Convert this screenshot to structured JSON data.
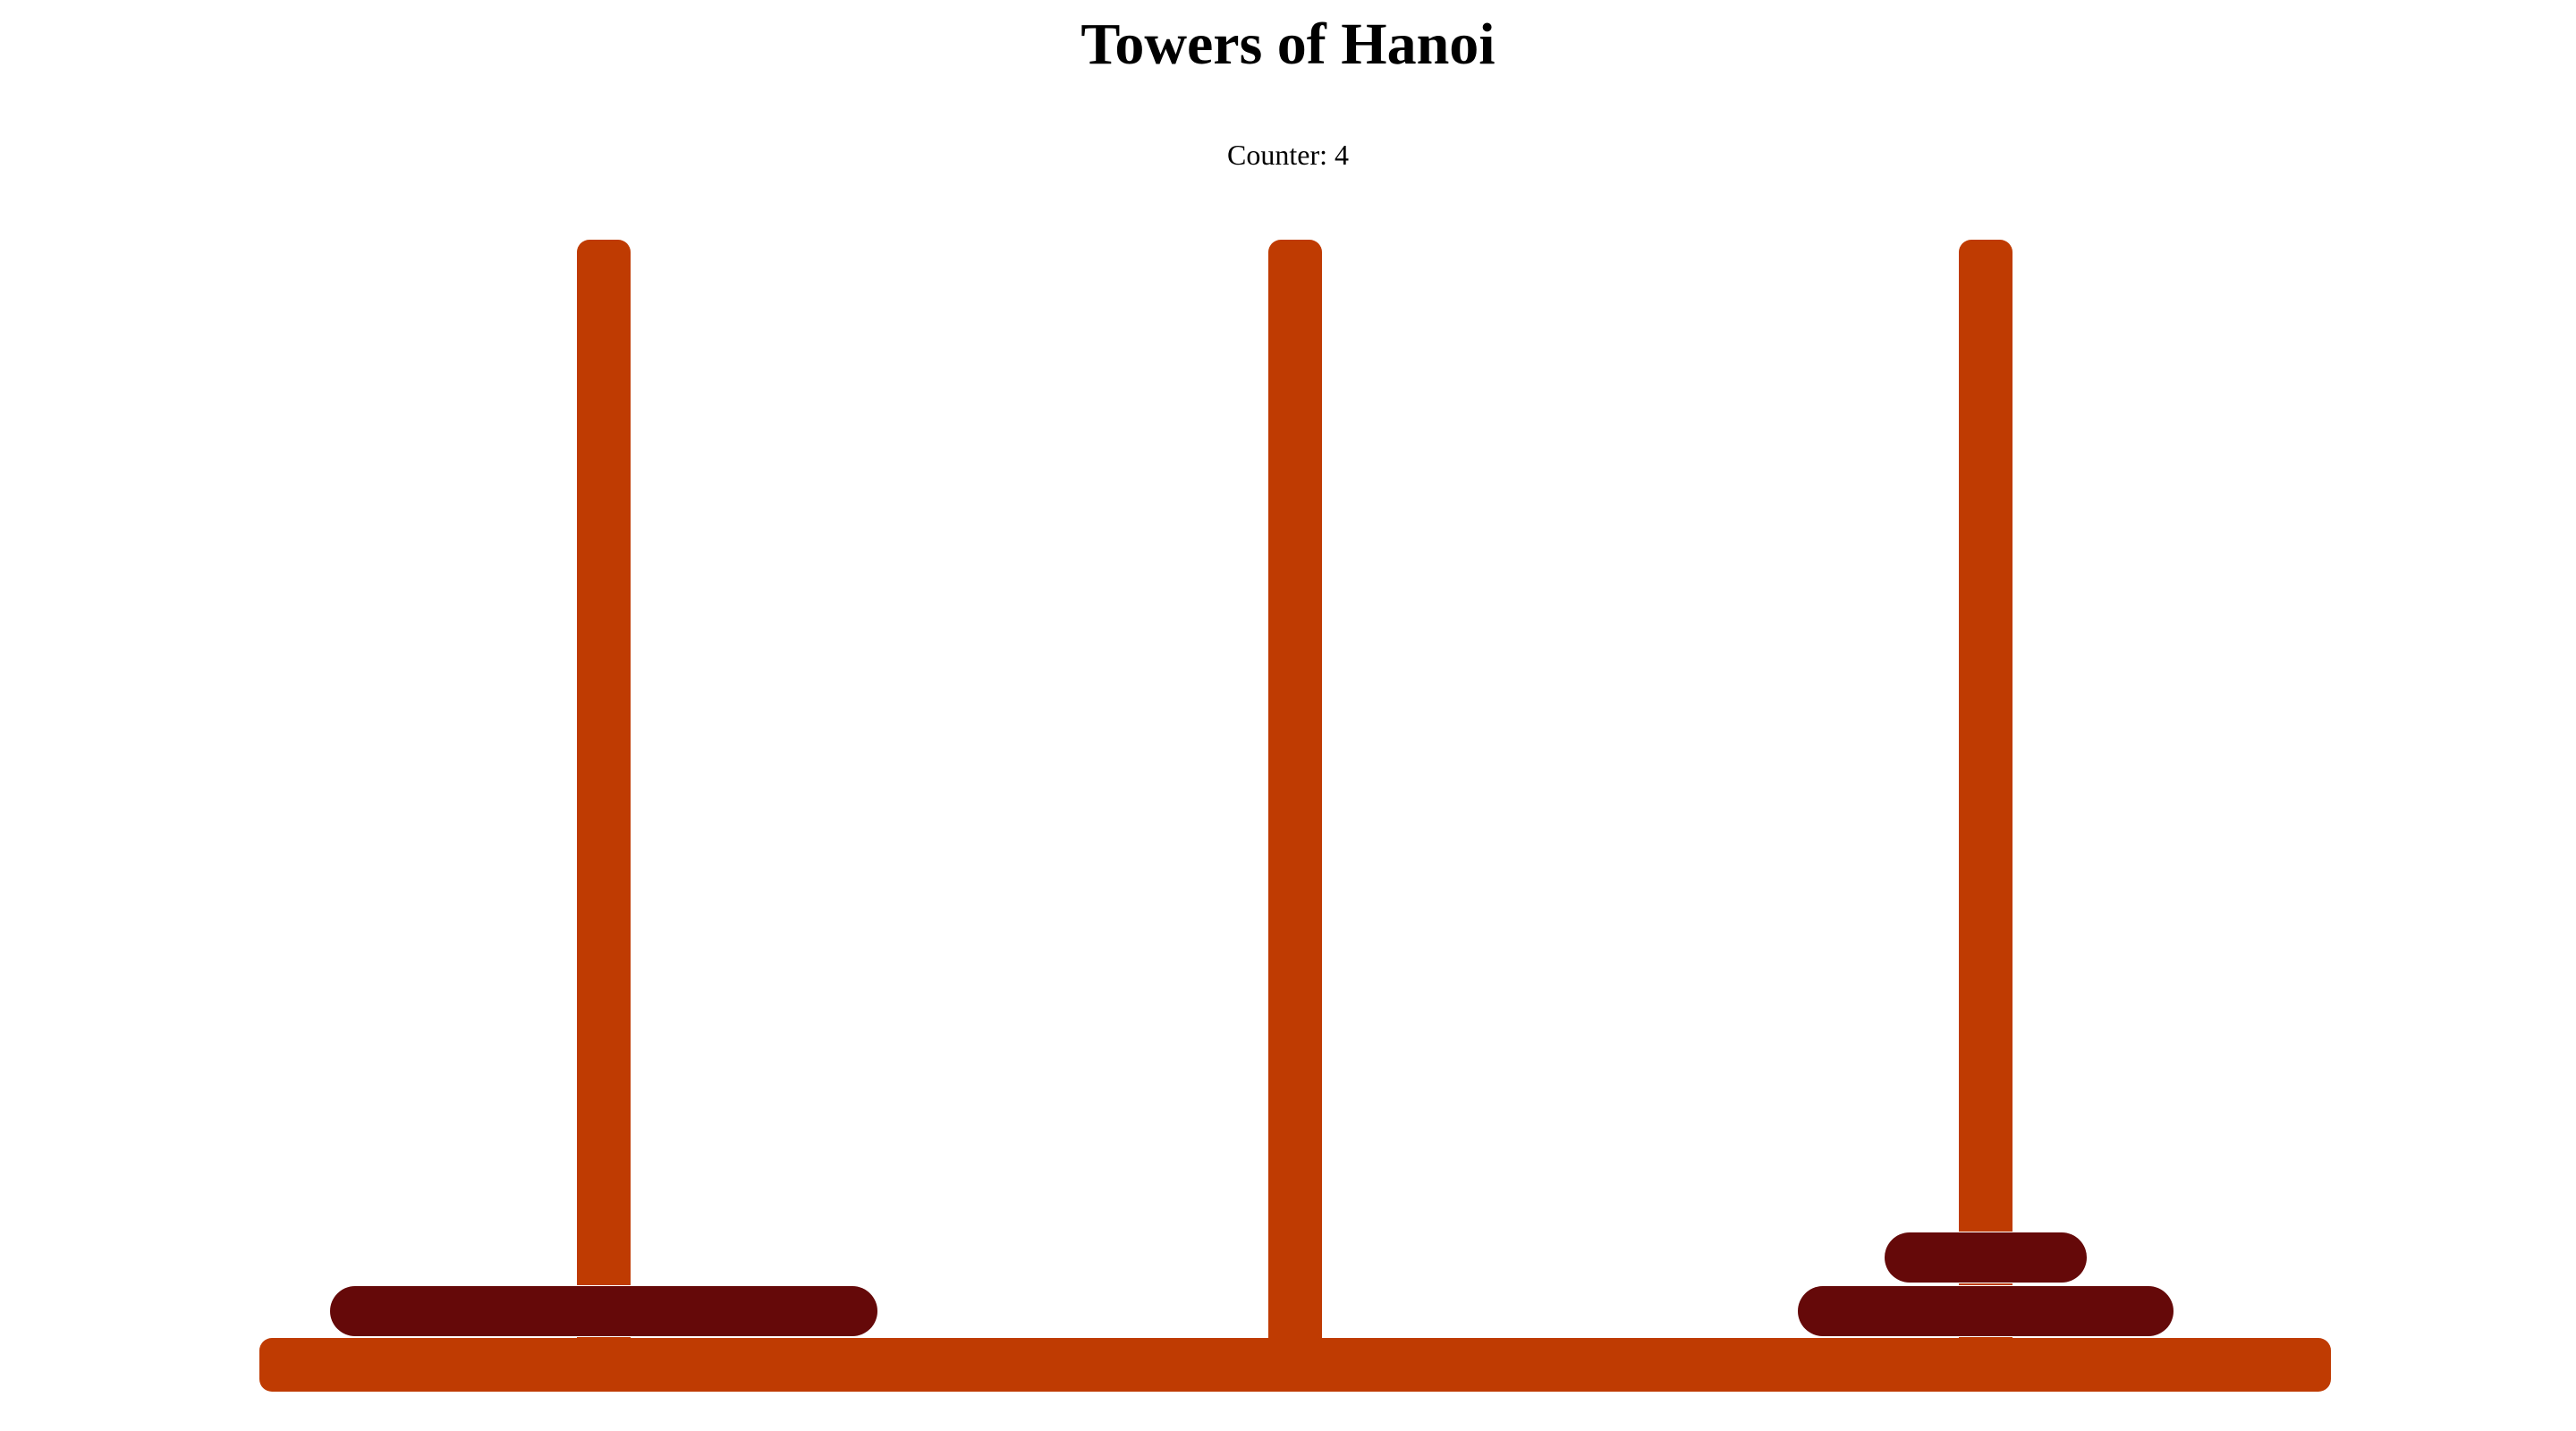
{
  "game": {
    "title": "Towers of Hanoi",
    "counter_text": "Counter: 4",
    "counter_value": 4
  },
  "colors": {
    "peg": "#bf3b02",
    "base": "#bf3b02",
    "disk": "#650909",
    "background": "#ffffff"
  },
  "pegs": [
    {
      "name": "peg-left",
      "disks": [
        3
      ]
    },
    {
      "name": "peg-middle",
      "disks": []
    },
    {
      "name": "peg-right",
      "disks": [
        2,
        1
      ]
    }
  ]
}
